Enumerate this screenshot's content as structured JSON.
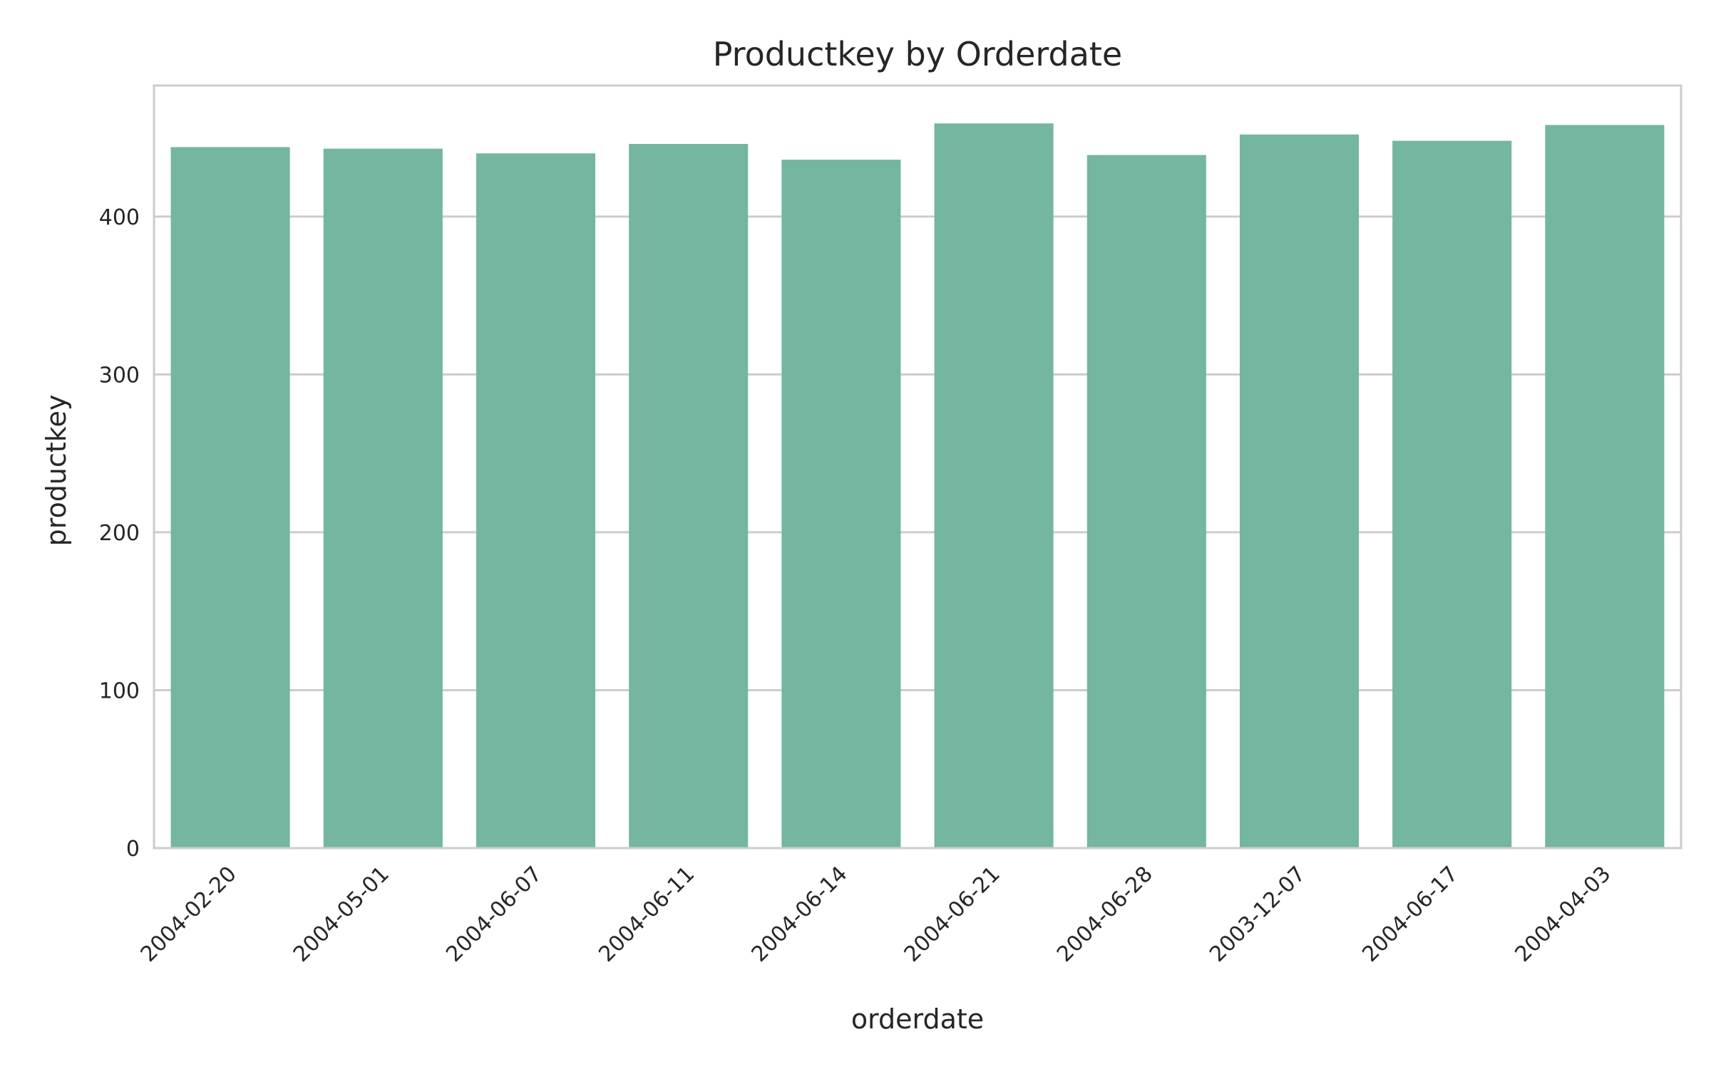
{
  "chart_data": {
    "type": "bar",
    "title": "Productkey by Orderdate",
    "xlabel": "orderdate",
    "ylabel": "productkey",
    "categories": [
      "2004-02-20",
      "2004-05-01",
      "2004-06-07",
      "2004-06-11",
      "2004-06-14",
      "2004-06-21",
      "2004-06-28",
      "2003-12-07",
      "2004-06-17",
      "2004-04-03"
    ],
    "values": [
      444,
      443,
      440,
      446,
      436,
      459,
      439,
      452,
      448,
      458
    ],
    "ylim": [
      0,
      483
    ],
    "yticks": [
      0,
      100,
      200,
      300,
      400
    ],
    "ytick_labels": [
      "0",
      "100",
      "200",
      "300",
      "400"
    ],
    "grid": true,
    "bar_color": "#74b6a0",
    "grid_color": "#cccccc",
    "frame_color": "#cccccc"
  }
}
